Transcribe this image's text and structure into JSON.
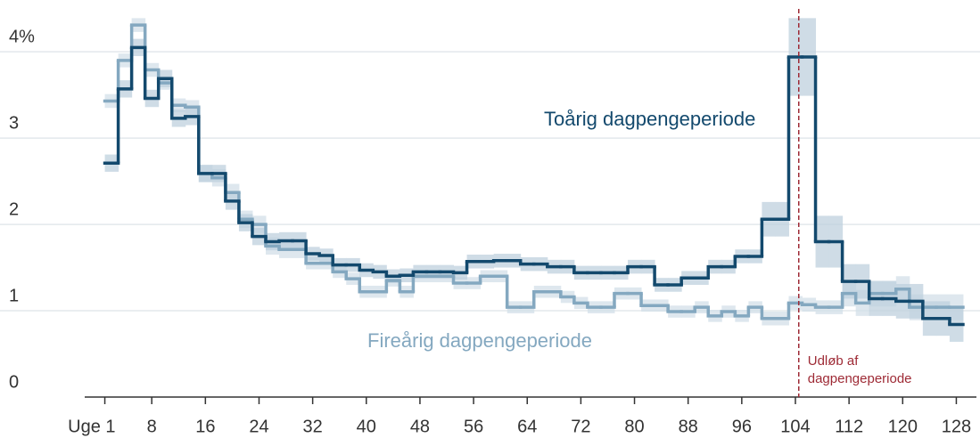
{
  "chart_data": {
    "type": "step",
    "x": [
      1,
      3,
      5,
      7,
      9,
      11,
      13,
      15,
      17,
      19,
      21,
      23,
      25,
      27,
      29,
      31,
      33,
      35,
      37,
      39,
      41,
      43,
      45,
      47,
      49,
      51,
      53,
      55,
      57,
      59,
      61,
      63,
      65,
      67,
      69,
      71,
      73,
      75,
      77,
      79,
      81,
      83,
      85,
      87,
      89,
      91,
      93,
      95,
      97,
      99,
      101,
      103,
      105,
      107,
      109,
      111,
      113,
      115,
      117,
      119,
      121,
      123,
      125,
      127
    ],
    "series": [
      {
        "name": "Toårig dagpengeperiode",
        "color": "#13496d",
        "band_color": "#bfd1de",
        "values": [
          2.71,
          3.57,
          4.05,
          3.46,
          3.69,
          3.23,
          3.25,
          2.59,
          2.59,
          2.27,
          2.02,
          1.86,
          1.8,
          1.81,
          1.81,
          1.66,
          1.64,
          1.53,
          1.53,
          1.47,
          1.45,
          1.4,
          1.41,
          1.45,
          1.45,
          1.45,
          1.44,
          1.57,
          1.57,
          1.58,
          1.58,
          1.54,
          1.54,
          1.51,
          1.51,
          1.44,
          1.44,
          1.44,
          1.44,
          1.51,
          1.51,
          1.3,
          1.3,
          1.38,
          1.38,
          1.51,
          1.51,
          1.63,
          1.63,
          2.06,
          2.06,
          3.94,
          3.94,
          1.8,
          1.8,
          1.34,
          1.34,
          1.14,
          1.14,
          1.11,
          1.11,
          0.91,
          0.91,
          0.84
        ],
        "error": [
          0.1,
          0.1,
          0.1,
          0.1,
          0.1,
          0.1,
          0.1,
          0.1,
          0.1,
          0.1,
          0.1,
          0.1,
          0.1,
          0.1,
          0.1,
          0.08,
          0.08,
          0.08,
          0.08,
          0.08,
          0.08,
          0.08,
          0.08,
          0.08,
          0.08,
          0.08,
          0.08,
          0.08,
          0.08,
          0.08,
          0.08,
          0.08,
          0.08,
          0.08,
          0.08,
          0.08,
          0.08,
          0.08,
          0.08,
          0.08,
          0.08,
          0.08,
          0.08,
          0.08,
          0.08,
          0.08,
          0.08,
          0.08,
          0.08,
          0.2,
          0.2,
          0.45,
          0.45,
          0.3,
          0.3,
          0.2,
          0.2,
          0.2,
          0.2,
          0.2,
          0.2,
          0.2,
          0.2,
          0.2
        ]
      },
      {
        "name": "Fireårig dagpengeperiode",
        "color": "#84a8c0",
        "band_color": "#d3e0e9",
        "values": [
          3.43,
          3.9,
          4.31,
          3.79,
          3.64,
          3.38,
          3.36,
          2.59,
          2.54,
          2.37,
          2.06,
          2.0,
          1.75,
          1.71,
          1.71,
          1.55,
          1.55,
          1.45,
          1.37,
          1.22,
          1.22,
          1.35,
          1.22,
          1.4,
          1.4,
          1.4,
          1.32,
          1.32,
          1.4,
          1.4,
          1.04,
          1.04,
          1.22,
          1.22,
          1.16,
          1.09,
          1.04,
          1.04,
          1.2,
          1.2,
          1.06,
          1.06,
          0.99,
          0.99,
          1.04,
          0.94,
          0.99,
          0.94,
          1.04,
          0.91,
          0.91,
          1.09,
          1.07,
          1.04,
          1.04,
          1.2,
          1.09,
          1.2,
          1.2,
          1.25,
          1.04,
          1.04,
          1.04,
          1.04
        ],
        "error": [
          0.08,
          0.08,
          0.08,
          0.08,
          0.08,
          0.08,
          0.08,
          0.1,
          0.1,
          0.1,
          0.1,
          0.1,
          0.1,
          0.1,
          0.1,
          0.07,
          0.07,
          0.07,
          0.07,
          0.07,
          0.07,
          0.07,
          0.07,
          0.07,
          0.07,
          0.07,
          0.07,
          0.07,
          0.07,
          0.07,
          0.07,
          0.07,
          0.07,
          0.07,
          0.07,
          0.07,
          0.07,
          0.07,
          0.07,
          0.07,
          0.07,
          0.07,
          0.07,
          0.07,
          0.07,
          0.07,
          0.07,
          0.07,
          0.07,
          0.08,
          0.08,
          0.08,
          0.08,
          0.08,
          0.08,
          0.15,
          0.15,
          0.15,
          0.15,
          0.15,
          0.15,
          0.15,
          0.15,
          0.15
        ]
      }
    ],
    "xlim": [
      -2,
      131
    ],
    "ylim": [
      0,
      4.6
    ],
    "xticks": [
      {
        "value": 1,
        "label": "Uge 1"
      },
      8,
      16,
      24,
      32,
      40,
      48,
      56,
      64,
      72,
      80,
      88,
      96,
      104,
      112,
      120,
      128
    ],
    "yticks": [
      0,
      1,
      2,
      3,
      {
        "value": 4,
        "label": "4%"
      }
    ],
    "grid": true,
    "vline": {
      "x": 104.5,
      "color": "#9e2a35",
      "label": [
        "Udløb af",
        "dagpengeperiode"
      ]
    }
  }
}
